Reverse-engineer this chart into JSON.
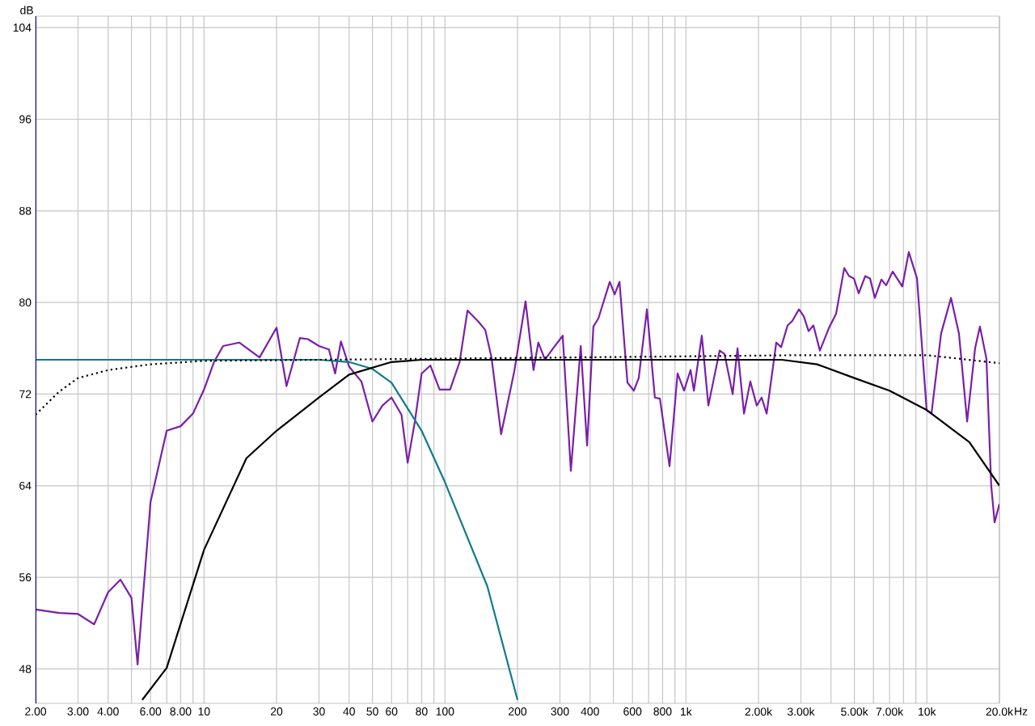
{
  "chart_data": {
    "type": "line",
    "ylabel": "dB",
    "log": "x",
    "grid": true,
    "marker": "none",
    "xlim": [
      2,
      20000
    ],
    "ylim": [
      45,
      105
    ],
    "xticks": [
      {
        "value": 2,
        "label": "2.00"
      },
      {
        "value": 3,
        "label": "3.00"
      },
      {
        "value": 4,
        "label": "4.00"
      },
      {
        "value": 5,
        "label": null
      },
      {
        "value": 6,
        "label": "6.00"
      },
      {
        "value": 7,
        "label": null
      },
      {
        "value": 8,
        "label": "8.00"
      },
      {
        "value": 9,
        "label": null
      },
      10,
      20,
      30,
      40,
      50,
      60,
      {
        "value": 70,
        "label": null
      },
      80,
      {
        "value": 90,
        "label": null
      },
      100,
      200,
      300,
      400,
      {
        "value": 500,
        "label": null
      },
      600,
      {
        "value": 700,
        "label": null
      },
      800,
      {
        "value": 900,
        "label": null
      },
      {
        "value": 1000,
        "label": "1k"
      },
      {
        "value": 2000,
        "label": "2.00k"
      },
      {
        "value": 3000,
        "label": "3.00k"
      },
      {
        "value": 4000,
        "label": null
      },
      {
        "value": 5000,
        "label": "5.00k"
      },
      {
        "value": 6000,
        "label": null
      },
      {
        "value": 7000,
        "label": "7.00k"
      },
      {
        "value": 8000,
        "label": null
      },
      {
        "value": 9000,
        "label": null
      },
      {
        "value": 10000,
        "label": "10k"
      },
      {
        "value": 20000,
        "label": "20.0k"
      }
    ],
    "xlabel": "Hz",
    "yticks": [
      48,
      56,
      64,
      72,
      80,
      88,
      96,
      104
    ],
    "series": [
      {
        "color": "#7a1fa8",
        "line_style": "solid",
        "x": [
          2,
          2.5,
          3,
          3.5,
          4,
          4.5,
          5,
          5.3,
          6,
          7,
          8,
          9,
          10,
          11,
          12,
          14,
          17,
          20,
          22,
          25,
          27,
          30,
          33,
          35,
          37,
          40,
          45,
          50,
          55,
          60,
          66,
          70,
          75,
          80,
          87,
          95,
          105,
          115,
          124,
          138,
          147,
          156,
          171,
          194,
          216,
          233,
          244,
          260,
          281,
          308,
          333,
          366,
          389,
          413,
          433,
          483,
          506,
          530,
          572,
          608,
          637,
          689,
          743,
          780,
          855,
          923,
          982,
          1045,
          1079,
          1164,
          1239,
          1380,
          1446,
          1563,
          1637,
          1742,
          1850,
          1968,
          2061,
          2163,
          2371,
          2483,
          2642,
          2767,
          2944,
          3083,
          3229,
          3381,
          3597,
          3945,
          4198,
          4539,
          4754,
          4978,
          5212,
          5546,
          5808,
          6082,
          6471,
          6776,
          7211,
          7907,
          8414,
          9099,
          9978,
          10448,
          11456,
          12590,
          13584,
          14690,
          15850,
          16598,
          17662,
          18494,
          19100,
          20000
        ],
        "values": [
          53.2,
          52.9,
          52.8,
          51.9,
          54.7,
          55.8,
          54.2,
          48.4,
          62.6,
          68.8,
          69.2,
          70.3,
          72.4,
          74.8,
          76.2,
          76.5,
          75.2,
          77.8,
          72.7,
          76.9,
          76.8,
          76.2,
          75.9,
          73.8,
          76.6,
          74.4,
          73.1,
          69.6,
          71,
          71.7,
          70.2,
          66,
          69.6,
          73.8,
          74.5,
          72.4,
          72.4,
          74.8,
          79.3,
          78.3,
          77.6,
          75.2,
          68.5,
          74,
          80.1,
          74.1,
          76.5,
          75,
          76,
          77.1,
          65.3,
          76.2,
          67.5,
          77.9,
          78.6,
          81.8,
          80.7,
          81.8,
          73,
          72.3,
          73.4,
          79.4,
          71.7,
          71.6,
          65.7,
          73.8,
          72.3,
          74.1,
          72.3,
          77.1,
          71,
          75.8,
          75.5,
          72,
          76,
          70.3,
          73.1,
          71,
          71.7,
          70.3,
          76.5,
          76.1,
          78,
          78.4,
          79.4,
          78.8,
          77.5,
          78,
          75.8,
          77.9,
          79,
          83,
          82.3,
          82.1,
          80.8,
          82.3,
          82.1,
          80.4,
          82,
          81.5,
          82.7,
          81.4,
          84.4,
          82.1,
          70.6,
          70.3,
          77.3,
          80.4,
          77.3,
          69.6,
          76,
          77.9,
          75.1,
          64,
          60.8,
          62.4
        ]
      },
      {
        "color": "#117a8b",
        "line_style": "solid",
        "x": [
          2,
          30,
          40,
          50,
          60,
          80,
          100,
          150,
          200
        ],
        "values": [
          75,
          75,
          74.8,
          74.2,
          73,
          68.8,
          64.3,
          55.2,
          45.3
        ]
      },
      {
        "color": "#000000",
        "line_style": "solid",
        "x": [
          5.54,
          7,
          10,
          15,
          20,
          30,
          40,
          60,
          80,
          2500,
          3500,
          5000,
          7000,
          10000,
          15000,
          20000
        ],
        "values": [
          45.3,
          48.1,
          58.4,
          66.4,
          68.8,
          71.7,
          73.7,
          74.8,
          75,
          75,
          74.6,
          73.4,
          72.3,
          70.6,
          67.8,
          64
        ]
      },
      {
        "color": "#000000",
        "line_style": "dotted",
        "x": [
          2,
          2.5,
          3,
          4,
          6,
          10,
          100,
          1000,
          3000,
          10000,
          20000
        ],
        "values": [
          70.2,
          72.2,
          73.4,
          74.1,
          74.6,
          74.9,
          75.1,
          75.3,
          75.4,
          75.4,
          74.7
        ]
      }
    ]
  }
}
